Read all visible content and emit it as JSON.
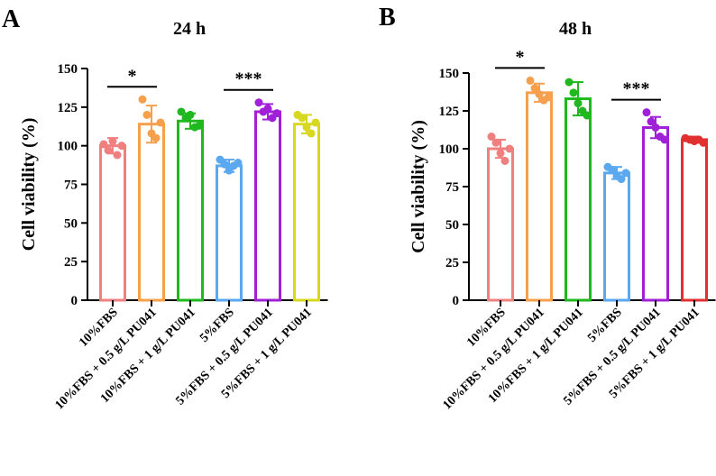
{
  "chart_data": [
    {
      "type": "bar",
      "panel": "A",
      "title": "24 h",
      "ylabel": "Cell viability (%)",
      "xlabel": "",
      "ylim": [
        0,
        150
      ],
      "yticks": [
        0,
        25,
        50,
        75,
        100,
        125,
        150
      ],
      "categories": [
        "10%FBS",
        "10%FBS + 0.5 g/L PU041",
        "10%FBS + 1 g/L PU041",
        "5%FBS",
        "5%FBS + 0.5 g/L PU041",
        "5%FBS + 1 g/L PU041"
      ],
      "values": [
        100,
        114,
        116,
        87,
        122,
        114
      ],
      "errors": [
        5,
        12,
        5,
        4,
        5,
        6
      ],
      "colors": [
        "#f08080",
        "#f6a04d",
        "#1fb81f",
        "#5aa8f0",
        "#a020d8",
        "#d8d820"
      ],
      "points": [
        [
          101,
          97,
          103,
          94,
          100
        ],
        [
          130,
          120,
          108,
          105,
          115
        ],
        [
          122,
          118,
          120,
          112,
          113
        ],
        [
          91,
          88,
          84,
          87,
          89
        ],
        [
          128,
          122,
          124,
          118,
          121
        ],
        [
          120,
          118,
          112,
          108,
          115
        ]
      ],
      "significance": [
        {
          "from": 0,
          "to": 1,
          "label": "*"
        },
        {
          "from": 3,
          "to": 4,
          "label": "***"
        }
      ]
    },
    {
      "type": "bar",
      "panel": "B",
      "title": "48 h",
      "ylabel": "Cell viability (%)",
      "xlabel": "",
      "ylim": [
        0,
        150
      ],
      "yticks": [
        0,
        25,
        50,
        75,
        100,
        125,
        150
      ],
      "categories": [
        "10%FBS",
        "10%FBS + 0.5 g/L PU041",
        "10%FBS + 1 g/L PU041",
        "5%FBS",
        "5%FBS + 0.5 g/L PU041",
        "5%FBS + 1 g/L PU041"
      ],
      "values": [
        100,
        137,
        133,
        84,
        114,
        106
      ],
      "errors": [
        6,
        6,
        11,
        4,
        7,
        2
      ],
      "colors": [
        "#f08080",
        "#f6a04d",
        "#1fb81f",
        "#5aa8f0",
        "#a020d8",
        "#e03030"
      ],
      "points": [
        [
          108,
          104,
          97,
          92,
          100
        ],
        [
          145,
          140,
          136,
          132,
          134
        ],
        [
          144,
          137,
          130,
          125,
          122
        ],
        [
          88,
          86,
          82,
          80,
          84
        ],
        [
          124,
          118,
          114,
          108,
          106
        ],
        [
          107,
          106,
          105,
          106,
          104
        ]
      ],
      "significance": [
        {
          "from": 0,
          "to": 1,
          "label": "*"
        },
        {
          "from": 3,
          "to": 4,
          "label": "***"
        }
      ]
    }
  ]
}
